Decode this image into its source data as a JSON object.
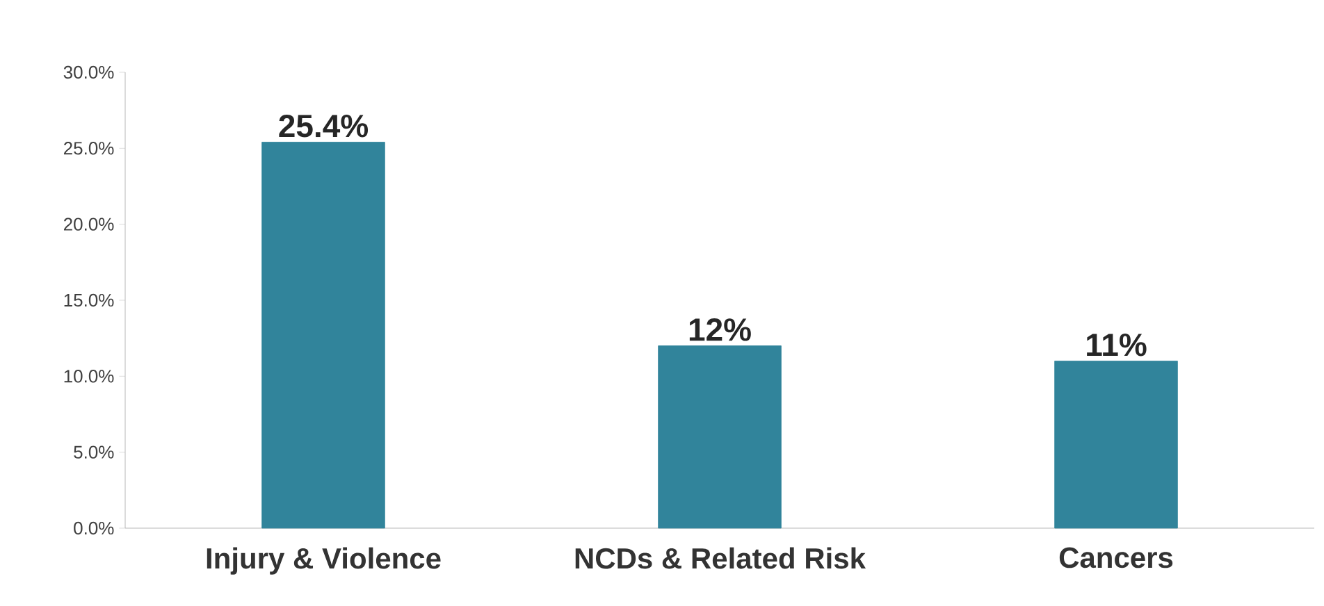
{
  "chart_data": {
    "type": "bar",
    "categories": [
      "Injury & Violence",
      "NCDs & Related Risk",
      "Cancers"
    ],
    "values": [
      25.4,
      12,
      11
    ],
    "value_labels": [
      "25.4%",
      "12%",
      "11%"
    ],
    "color": "#31849b",
    "ylim": [
      0,
      30
    ],
    "yticks": [
      {
        "value": 0,
        "label": "0.0%"
      },
      {
        "value": 5,
        "label": "5.0%"
      },
      {
        "value": 10,
        "label": "10.0%"
      },
      {
        "value": 15,
        "label": "15.0%"
      },
      {
        "value": 20,
        "label": "20.0%"
      },
      {
        "value": 25,
        "label": "25.0%"
      },
      {
        "value": 30,
        "label": "30.0%"
      }
    ]
  }
}
